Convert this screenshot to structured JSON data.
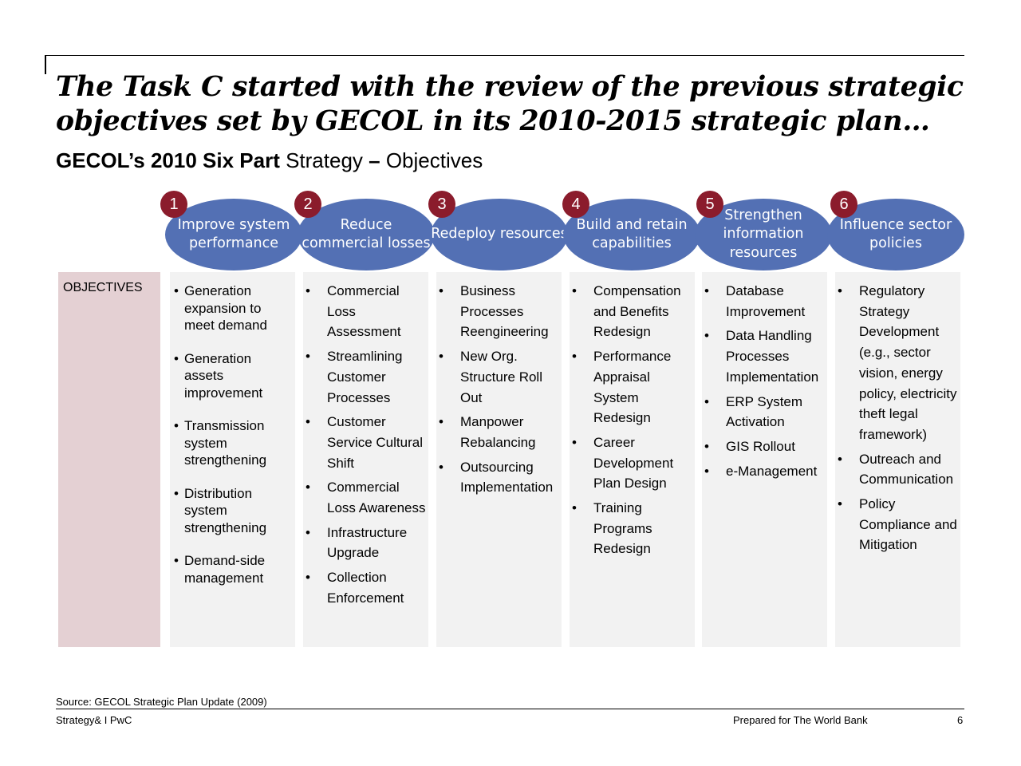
{
  "title": "The Task C started with the review of the previous strategic objectives set by GECOL in its 2010-2015 strategic plan…",
  "subtitle": {
    "bold": "GECOL’s 2010 Six Part",
    "regular_1": " Strategy ",
    "dash": "–",
    "regular_2": " Objectives"
  },
  "row_label": "OBJECTIVES",
  "colors": {
    "oval": "#5370b4",
    "number_badge": "#8b1c2c",
    "objectives_box": "#e4d0d3",
    "column_bg": "#f2f2f2"
  },
  "pillars": [
    {
      "number": "1",
      "name": "Improve system performance",
      "items": [
        "Generation expansion to meet demand",
        "Generation assets improvement",
        "Transmission system strengthening",
        "Distribution system strengthening",
        "Demand-side management"
      ]
    },
    {
      "number": "2",
      "name": "Reduce commercial losses",
      "items": [
        "Commercial Loss Assessment",
        "Streamlining Customer Processes",
        "Customer Service Cultural Shift",
        "Commercial Loss Awareness",
        "Infrastructure Upgrade",
        "Collection Enforcement"
      ]
    },
    {
      "number": "3",
      "name": "Redeploy resources",
      "items": [
        "Business Processes Reengineering",
        "New Org. Structure Roll Out",
        "Manpower Rebalancing",
        "Outsourcing Implementation"
      ]
    },
    {
      "number": "4",
      "name": "Build and retain capabilities",
      "items": [
        "Compensation and Benefits Redesign",
        "Performance Appraisal System Redesign",
        "Career Development Plan Design",
        "Training Programs Redesign"
      ]
    },
    {
      "number": "5",
      "name": "Strengthen information resources",
      "items": [
        "Database Improvement",
        "Data Handling Processes Implementation",
        "ERP System Activation",
        "GIS Rollout",
        "e-Management"
      ]
    },
    {
      "number": "6",
      "name": "Influence sector policies",
      "items": [
        "Regulatory Strategy Development (e.g., sector vision, energy policy, electricity theft legal framework)",
        "Outreach and Communication",
        "Policy Compliance and Mitigation"
      ]
    }
  ],
  "source": "Source: GECOL Strategic Plan Update (2009)",
  "footer": {
    "left": "Strategy& I PwC",
    "right": "Prepared for The World Bank",
    "page": "6"
  }
}
